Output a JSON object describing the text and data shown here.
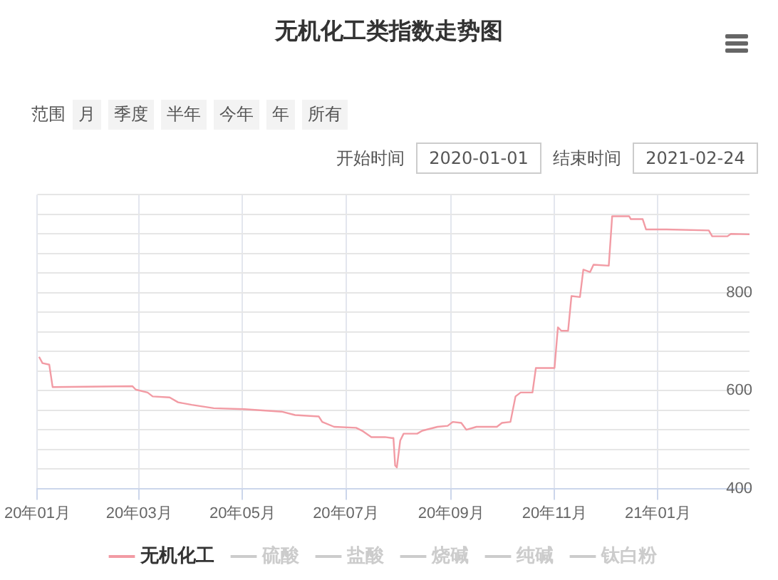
{
  "chart_data": {
    "type": "line",
    "title": "无机化工类指数走势图",
    "annotations": [
      "范围",
      "月",
      "季度",
      "半年",
      "今年",
      "年",
      "所有",
      "开始时间",
      "2020-01-01",
      "结束时间",
      "2021-02-24"
    ],
    "x": [
      "2020-01-02",
      "2020-01-04",
      "2020-01-08",
      "2020-01-10",
      "2020-02-26",
      "2020-02-28",
      "2020-03-06",
      "2020-03-09",
      "2020-03-19",
      "2020-03-24",
      "2020-04-01",
      "2020-04-14",
      "2020-05-02",
      "2020-05-24",
      "2020-06-01",
      "2020-06-15",
      "2020-06-17",
      "2020-06-24",
      "2020-07-07",
      "2020-07-11",
      "2020-07-16",
      "2020-07-24",
      "2020-07-28",
      "2020-07-29",
      "2020-07-30",
      "2020-07-31",
      "2020-08-02",
      "2020-08-04",
      "2020-08-12",
      "2020-08-15",
      "2020-08-24",
      "2020-08-30",
      "2020-09-02",
      "2020-09-07",
      "2020-09-10",
      "2020-09-16",
      "2020-09-28",
      "2020-10-01",
      "2020-10-06",
      "2020-10-09",
      "2020-10-12",
      "2020-10-19",
      "2020-10-21",
      "2020-11-01",
      "2020-11-03",
      "2020-11-05",
      "2020-11-09",
      "2020-11-11",
      "2020-11-16",
      "2020-11-18",
      "2020-11-22",
      "2020-11-24",
      "2020-12-03",
      "2020-12-05",
      "2020-12-15",
      "2020-12-16",
      "2020-12-23",
      "2020-12-25",
      "2021-01-06",
      "2021-01-31",
      "2021-02-02",
      "2021-02-11",
      "2021-02-13",
      "2021-02-24"
    ],
    "series": [
      {
        "name": "无机化工",
        "color": "#f29ba4",
        "values": [
          669,
          656,
          653,
          607,
          609,
          602,
          596,
          588,
          586,
          576,
          571,
          564,
          562,
          557,
          550,
          547,
          536,
          526,
          524,
          517,
          505,
          505,
          503,
          503,
          447,
          443,
          498,
          512,
          512,
          518,
          526,
          528,
          536,
          534,
          520,
          526,
          526,
          534,
          536,
          588,
          596,
          596,
          646,
          646,
          729,
          722,
          722,
          793,
          791,
          847,
          842,
          857,
          855,
          956,
          956,
          950,
          950,
          929,
          929,
          927,
          915,
          915,
          920,
          919
        ]
      },
      {
        "name": "硫酸",
        "color": "#cccccc",
        "values": [
          null,
          null,
          null,
          null,
          null,
          null,
          null,
          null,
          null,
          null,
          null,
          null,
          null,
          null,
          null,
          null,
          null,
          null,
          null,
          null,
          null,
          null,
          null,
          null,
          null,
          null,
          null,
          null,
          null,
          null,
          null,
          null,
          null,
          null,
          null,
          null,
          null,
          null,
          null,
          null,
          null,
          null,
          null,
          null,
          null,
          null,
          null,
          null,
          null,
          null,
          null,
          null,
          null,
          null,
          null,
          null,
          null,
          null,
          null,
          null,
          null,
          null,
          null,
          null
        ]
      },
      {
        "name": "盐酸",
        "color": "#cccccc",
        "values": [
          null,
          null,
          null,
          null,
          null,
          null,
          null,
          null,
          null,
          null,
          null,
          null,
          null,
          null,
          null,
          null,
          null,
          null,
          null,
          null,
          null,
          null,
          null,
          null,
          null,
          null,
          null,
          null,
          null,
          null,
          null,
          null,
          null,
          null,
          null,
          null,
          null,
          null,
          null,
          null,
          null,
          null,
          null,
          null,
          null,
          null,
          null,
          null,
          null,
          null,
          null,
          null,
          null,
          null,
          null,
          null,
          null,
          null,
          null,
          null,
          null,
          null,
          null,
          null
        ]
      },
      {
        "name": "烧碱",
        "color": "#cccccc",
        "values": [
          null,
          null,
          null,
          null,
          null,
          null,
          null,
          null,
          null,
          null,
          null,
          null,
          null,
          null,
          null,
          null,
          null,
          null,
          null,
          null,
          null,
          null,
          null,
          null,
          null,
          null,
          null,
          null,
          null,
          null,
          null,
          null,
          null,
          null,
          null,
          null,
          null,
          null,
          null,
          null,
          null,
          null,
          null,
          null,
          null,
          null,
          null,
          null,
          null,
          null,
          null,
          null,
          null,
          null,
          null,
          null,
          null,
          null,
          null,
          null,
          null,
          null,
          null,
          null
        ]
      },
      {
        "name": "纯碱",
        "color": "#cccccc",
        "values": [
          null,
          null,
          null,
          null,
          null,
          null,
          null,
          null,
          null,
          null,
          null,
          null,
          null,
          null,
          null,
          null,
          null,
          null,
          null,
          null,
          null,
          null,
          null,
          null,
          null,
          null,
          null,
          null,
          null,
          null,
          null,
          null,
          null,
          null,
          null,
          null,
          null,
          null,
          null,
          null,
          null,
          null,
          null,
          null,
          null,
          null,
          null,
          null,
          null,
          null,
          null,
          null,
          null,
          null,
          null,
          null,
          null,
          null,
          null,
          null,
          null,
          null,
          null,
          null
        ]
      },
      {
        "name": "钛白粉",
        "color": "#cccccc",
        "values": [
          null,
          null,
          null,
          null,
          null,
          null,
          null,
          null,
          null,
          null,
          null,
          null,
          null,
          null,
          null,
          null,
          null,
          null,
          null,
          null,
          null,
          null,
          null,
          null,
          null,
          null,
          null,
          null,
          null,
          null,
          null,
          null,
          null,
          null,
          null,
          null,
          null,
          null,
          null,
          null,
          null,
          null,
          null,
          null,
          null,
          null,
          null,
          null,
          null,
          null,
          null,
          null,
          null,
          null,
          null,
          null,
          null,
          null,
          null,
          null,
          null,
          null,
          null,
          null
        ]
      }
    ],
    "xlim": [
      "2020-01-01",
      "2021-02-24"
    ],
    "xticks": [
      {
        "value": "2020-01-01",
        "label": "20年01月"
      },
      {
        "value": "2020-03-01",
        "label": "20年03月"
      },
      {
        "value": "2020-05-01",
        "label": "20年05月"
      },
      {
        "value": "2020-07-01",
        "label": "20年07月"
      },
      {
        "value": "2020-09-01",
        "label": "20年09月"
      },
      {
        "value": "2020-11-01",
        "label": "20年11月"
      },
      {
        "value": "2021-01-01",
        "label": "21年01月"
      }
    ],
    "ylim": [
      400,
      1000
    ],
    "yticks": [
      400,
      {
        "value": 440,
        "label": null
      },
      {
        "value": 480,
        "label": null
      },
      {
        "value": 520,
        "label": null
      },
      {
        "value": 560,
        "label": null
      },
      600,
      {
        "value": 640,
        "label": null
      },
      {
        "value": 680,
        "label": null
      },
      {
        "value": 720,
        "label": null
      },
      {
        "value": 760,
        "label": null
      },
      800,
      {
        "value": 840,
        "label": null
      },
      {
        "value": 880,
        "label": null
      },
      {
        "value": 920,
        "label": null
      },
      {
        "value": 960,
        "label": null
      },
      {
        "value": 1000,
        "label": null
      }
    ],
    "grid": true,
    "legend": "bottom",
    "marker": "none",
    "line_style": "solid"
  }
}
